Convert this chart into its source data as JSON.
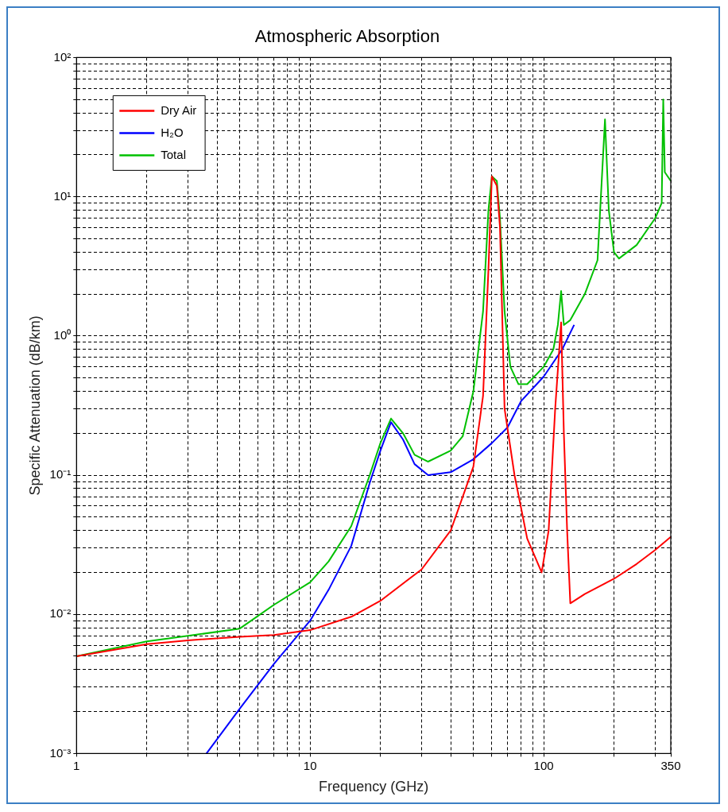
{
  "chart_data": {
    "type": "line",
    "title": "Atmospheric Absorption",
    "xlabel": "Frequency (GHz)",
    "ylabel": "Specific Attenuation (dB/km)",
    "log": "xy",
    "grid": true,
    "legend": "top left",
    "line_style": "solid",
    "marker": "none",
    "xlim": [
      1,
      350
    ],
    "ylim": [
      0.001,
      100
    ],
    "xticks": [
      1,
      {
        "value": 2,
        "label": null
      },
      {
        "value": 3,
        "label": null
      },
      {
        "value": 4,
        "label": null
      },
      {
        "value": 5,
        "label": null
      },
      {
        "value": 6,
        "label": null
      },
      {
        "value": 7,
        "label": null
      },
      {
        "value": 8,
        "label": null
      },
      {
        "value": 9,
        "label": null
      },
      10,
      {
        "value": 20,
        "label": null
      },
      {
        "value": 30,
        "label": null
      },
      {
        "value": 40,
        "label": null
      },
      {
        "value": 50,
        "label": null
      },
      {
        "value": 60,
        "label": null
      },
      {
        "value": 70,
        "label": null
      },
      {
        "value": 80,
        "label": null
      },
      {
        "value": 90,
        "label": null
      },
      100,
      {
        "value": 200,
        "label": null
      },
      {
        "value": 300,
        "label": null
      },
      350
    ],
    "yticks": [
      {
        "value": 0.001,
        "label": "10⁻³"
      },
      {
        "value": 0.002,
        "label": null
      },
      {
        "value": 0.003,
        "label": null
      },
      {
        "value": 0.004,
        "label": null
      },
      {
        "value": 0.005,
        "label": null
      },
      {
        "value": 0.006,
        "label": null
      },
      {
        "value": 0.007,
        "label": null
      },
      {
        "value": 0.008,
        "label": null
      },
      {
        "value": 0.009,
        "label": null
      },
      {
        "value": 0.01,
        "label": "10⁻²"
      },
      {
        "value": 0.02,
        "label": null
      },
      {
        "value": 0.03,
        "label": null
      },
      {
        "value": 0.04,
        "label": null
      },
      {
        "value": 0.05,
        "label": null
      },
      {
        "value": 0.06,
        "label": null
      },
      {
        "value": 0.07,
        "label": null
      },
      {
        "value": 0.08,
        "label": null
      },
      {
        "value": 0.09,
        "label": null
      },
      {
        "value": 0.1,
        "label": "10⁻¹"
      },
      {
        "value": 0.2,
        "label": null
      },
      {
        "value": 0.3,
        "label": null
      },
      {
        "value": 0.4,
        "label": null
      },
      {
        "value": 0.5,
        "label": null
      },
      {
        "value": 0.6,
        "label": null
      },
      {
        "value": 0.7,
        "label": null
      },
      {
        "value": 0.8,
        "label": null
      },
      {
        "value": 0.9,
        "label": null
      },
      {
        "value": 1,
        "label": "10⁰"
      },
      {
        "value": 2,
        "label": null
      },
      {
        "value": 3,
        "label": null
      },
      {
        "value": 4,
        "label": null
      },
      {
        "value": 5,
        "label": null
      },
      {
        "value": 6,
        "label": null
      },
      {
        "value": 7,
        "label": null
      },
      {
        "value": 8,
        "label": null
      },
      {
        "value": 9,
        "label": null
      },
      {
        "value": 10,
        "label": "10¹"
      },
      {
        "value": 20,
        "label": null
      },
      {
        "value": 30,
        "label": null
      },
      {
        "value": 40,
        "label": null
      },
      {
        "value": 50,
        "label": null
      },
      {
        "value": 60,
        "label": null
      },
      {
        "value": 70,
        "label": null
      },
      {
        "value": 80,
        "label": null
      },
      {
        "value": 90,
        "label": null
      },
      {
        "value": 100,
        "label": "10²"
      }
    ],
    "series": [
      {
        "name": "Dry Air",
        "color": "#ff0000",
        "x": [
          1,
          2,
          3,
          5,
          7,
          10,
          15,
          20,
          30,
          40,
          50,
          55,
          58,
          60,
          63,
          65,
          68,
          75,
          85,
          98,
          105,
          112,
          118.75,
          122,
          126,
          130,
          150,
          200,
          250,
          300,
          350
        ],
        "values": [
          0.005,
          0.0061,
          0.0065,
          0.0069,
          0.0071,
          0.0077,
          0.0096,
          0.0125,
          0.021,
          0.04,
          0.115,
          0.37,
          3,
          14,
          12,
          6,
          0.3,
          0.1,
          0.035,
          0.02,
          0.04,
          0.3,
          1.25,
          0.2,
          0.04,
          0.012,
          0.014,
          0.018,
          0.023,
          0.029,
          0.036
        ]
      },
      {
        "name": "H₂O",
        "color": "#0000ff",
        "x": [
          3.6,
          5,
          7,
          10,
          12,
          15,
          18,
          20,
          22.2,
          25,
          28,
          32,
          40,
          50,
          60,
          70,
          80,
          100,
          120,
          135
        ],
        "values": [
          0.001,
          0.0021,
          0.0044,
          0.009,
          0.015,
          0.031,
          0.088,
          0.15,
          0.24,
          0.18,
          0.12,
          0.1,
          0.105,
          0.13,
          0.17,
          0.22,
          0.34,
          0.51,
          0.8,
          1.2
        ]
      },
      {
        "name": "Total",
        "color": "#00c000",
        "x": [
          1,
          2,
          3,
          5,
          7,
          10,
          12,
          15,
          18,
          20,
          22.2,
          25,
          28,
          32,
          40,
          45,
          50,
          55,
          58,
          60,
          63,
          65,
          68,
          72,
          78,
          85,
          100,
          110,
          115,
          118.75,
          122,
          130,
          150,
          170,
          183,
          190,
          200,
          210,
          250,
          300,
          320,
          325,
          330,
          350
        ],
        "values": [
          0.005,
          0.0064,
          0.007,
          0.0079,
          0.0117,
          0.017,
          0.024,
          0.043,
          0.1,
          0.17,
          0.255,
          0.2,
          0.14,
          0.125,
          0.15,
          0.19,
          0.4,
          1.5,
          8,
          14,
          13,
          7,
          1.5,
          0.6,
          0.45,
          0.45,
          0.6,
          0.8,
          1.2,
          2.1,
          1.2,
          1.3,
          2,
          3.5,
          36,
          8,
          4,
          3.6,
          4.5,
          7,
          9,
          50,
          15,
          13
        ]
      }
    ]
  }
}
